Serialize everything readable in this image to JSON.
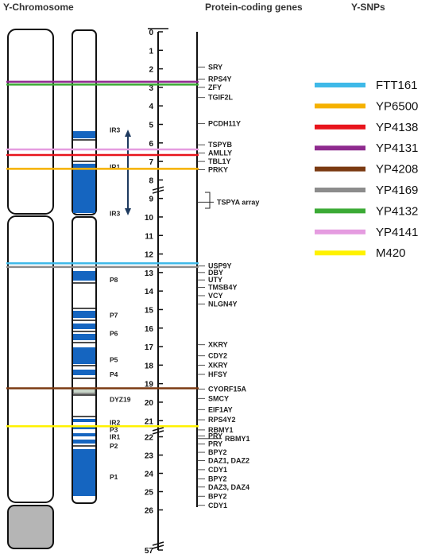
{
  "headers": {
    "chromosome": "Y-Chromosome",
    "genes": "Protein-coding genes",
    "snps": "Y-SNPs"
  },
  "scale_ticks": [
    "0",
    "1",
    "2",
    "3",
    "4",
    "5",
    "6",
    "7",
    "8",
    "9",
    "10",
    "11",
    "12",
    "13",
    "14",
    "15",
    "16",
    "17",
    "18",
    "19",
    "20",
    "21",
    "22",
    "23",
    "24",
    "25",
    "26",
    "57"
  ],
  "regions": [
    {
      "label": "IR3",
      "mb": 5.3
    },
    {
      "label": "IR1",
      "mb": 7.3
    },
    {
      "label": "IR3",
      "mb": 9.8
    },
    {
      "label": "P8",
      "mb": 13.4
    },
    {
      "label": "P7",
      "mb": 15.3
    },
    {
      "label": "P6",
      "mb": 16.3
    },
    {
      "label": "P5",
      "mb": 17.7
    },
    {
      "label": "P4",
      "mb": 18.5
    },
    {
      "label": "DYZ19",
      "mb": 19.85
    },
    {
      "label": "IR2",
      "mb": 21.1
    },
    {
      "label": "P3",
      "mb": 21.6
    },
    {
      "label": "IR1",
      "mb": 22.0
    },
    {
      "label": "P2",
      "mb": 22.5
    },
    {
      "label": "P1",
      "mb": 24.2
    }
  ],
  "genes": [
    {
      "label": "SRY",
      "mb": 1.9
    },
    {
      "label": "RPS4Y",
      "mb": 2.55
    },
    {
      "label": "ZFY",
      "mb": 3.0
    },
    {
      "label": "TGIF2L",
      "mb": 3.55
    },
    {
      "label": "PCDH11Y",
      "mb": 4.95
    },
    {
      "label": "TSPYB",
      "mb": 6.1
    },
    {
      "label": "AMLLY",
      "mb": 6.55
    },
    {
      "label": "TBL1Y",
      "mb": 7.0
    },
    {
      "label": "PRKY",
      "mb": 7.45
    },
    {
      "label": "TSPYA array",
      "mb": 9.2
    },
    {
      "label": "USP9Y",
      "mb": 12.65
    },
    {
      "label": "DBY",
      "mb": 13.0
    },
    {
      "label": "UTY",
      "mb": 13.4
    },
    {
      "label": "TMSB4Y",
      "mb": 13.8
    },
    {
      "label": "VCY",
      "mb": 14.25
    },
    {
      "label": "NLGN4Y",
      "mb": 14.7
    },
    {
      "label": "XKRY",
      "mb": 16.9
    },
    {
      "label": "CDY2",
      "mb": 17.5
    },
    {
      "label": "XKRY",
      "mb": 18.0
    },
    {
      "label": "HFSY",
      "mb": 18.5
    },
    {
      "label": "CYORF15A",
      "mb": 19.3
    },
    {
      "label": "SMCY",
      "mb": 19.8
    },
    {
      "label": "EIF1AY",
      "mb": 20.4
    },
    {
      "label": "RPS4Y2",
      "mb": 20.95
    },
    {
      "label": "RBMY1",
      "mb": 21.5
    },
    {
      "label": "PRY",
      "mb": 21.95
    },
    {
      "label": "RBMY1",
      "mb": 22.1
    },
    {
      "label": "PRY",
      "mb": 22.4
    },
    {
      "label": "BPY2",
      "mb": 22.85
    },
    {
      "label": "DAZ1, DAZ2",
      "mb": 23.3
    },
    {
      "label": "CDY1",
      "mb": 23.8
    },
    {
      "label": "BPY2",
      "mb": 24.3
    },
    {
      "label": "DAZ3, DAZ4",
      "mb": 24.75
    },
    {
      "label": "BPY2",
      "mb": 25.25
    },
    {
      "label": "CDY1",
      "mb": 25.75
    }
  ],
  "snps": [
    {
      "name": "FTT161",
      "color": "#3FB9E8",
      "mb": 12.5
    },
    {
      "name": "YP6500",
      "color": "#F5B100",
      "mb": 7.4
    },
    {
      "name": "YP4138",
      "color": "#E8141C",
      "mb": 6.65
    },
    {
      "name": "YP4131",
      "color": "#8E2A8E",
      "mb": 2.7
    },
    {
      "name": "YP4208",
      "color": "#7B3A12",
      "mb": 19.25
    },
    {
      "name": "YP4169",
      "color": "#8C8C8C",
      "mb": 12.7
    },
    {
      "name": "YP4132",
      "color": "#3BAA35",
      "mb": 2.85
    },
    {
      "name": "YP4141",
      "color": "#E59CE0",
      "mb": 6.35
    },
    {
      "name": "M420",
      "color": "#FFF200",
      "mb": 21.3
    }
  ],
  "colors": {
    "band_blue": "#1565C0",
    "outline": "#111111",
    "gray_cap": "#B5B5B5",
    "arrow": "#1E3A5F"
  },
  "icons": [
    "double-arrow-icon",
    "axis-break-icon"
  ]
}
